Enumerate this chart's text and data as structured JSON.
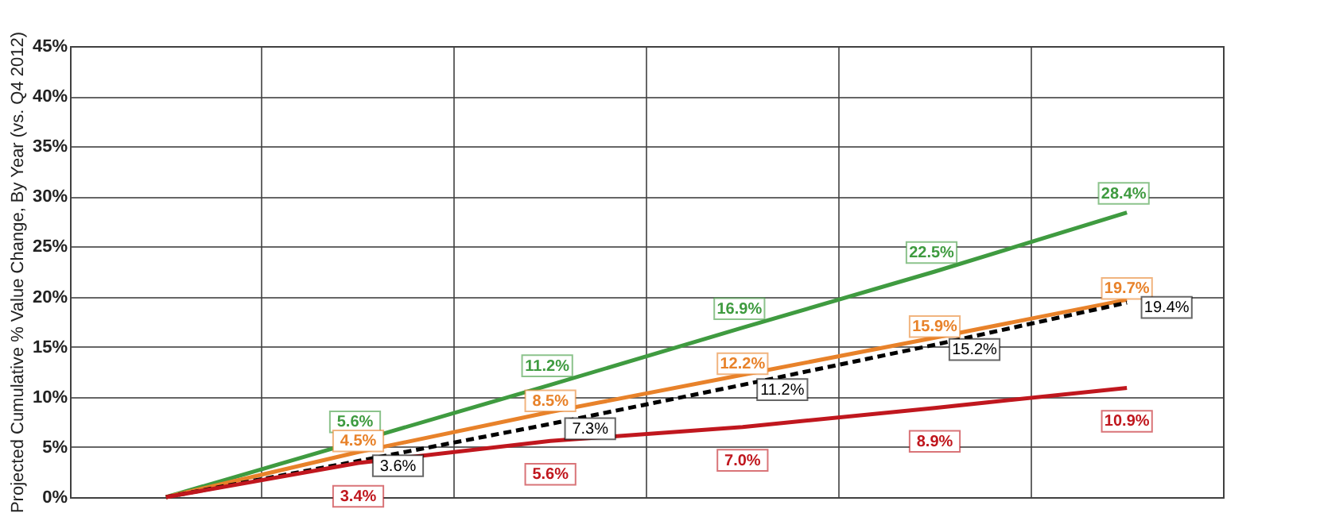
{
  "chart_data": {
    "type": "line",
    "ylabel": "Projected Cumulative % Value Change, By Year  (vs. Q4 2012)",
    "categories": [
      null,
      null,
      null,
      null,
      null,
      null
    ],
    "series": [
      {
        "color": "#3f9b40",
        "values": [
          0,
          5.6,
          11.2,
          16.9,
          22.5,
          28.4
        ],
        "value_labels": [
          null,
          "5.6%",
          "11.2%",
          "16.9%",
          "22.5%",
          "28.4%"
        ]
      },
      {
        "color": "#e8822a",
        "values": [
          0,
          4.5,
          8.5,
          12.2,
          15.9,
          19.7
        ],
        "value_labels": [
          null,
          "4.5%",
          "8.5%",
          "12.2%",
          "15.9%",
          "19.7%"
        ]
      },
      {
        "color": "#000000",
        "line_style": "dashed",
        "values": [
          0,
          3.6,
          7.3,
          11.2,
          15.2,
          19.4
        ],
        "value_labels": [
          null,
          "3.6%",
          "7.3%",
          "11.2%",
          "15.2%",
          "19.4%"
        ]
      },
      {
        "color": "#c0171e",
        "values": [
          0,
          3.4,
          5.6,
          7.0,
          8.9,
          10.9
        ],
        "value_labels": [
          null,
          "3.4%",
          "5.6%",
          "7.0%",
          "8.9%",
          "10.9%"
        ]
      }
    ],
    "ylim": [
      0,
      45
    ],
    "yticks": [
      {
        "value": 0,
        "label": "0%"
      },
      {
        "value": 5,
        "label": "5%"
      },
      {
        "value": 10,
        "label": "10%"
      },
      {
        "value": 15,
        "label": "15%"
      },
      {
        "value": 20,
        "label": "20%"
      },
      {
        "value": 25,
        "label": "25%"
      },
      {
        "value": 30,
        "label": "30%"
      },
      {
        "value": 35,
        "label": "35%"
      },
      {
        "value": 40,
        "label": "40%"
      },
      {
        "value": 45,
        "label": "45%"
      }
    ],
    "grid": true,
    "tick_labels": "y",
    "marker": "none"
  }
}
